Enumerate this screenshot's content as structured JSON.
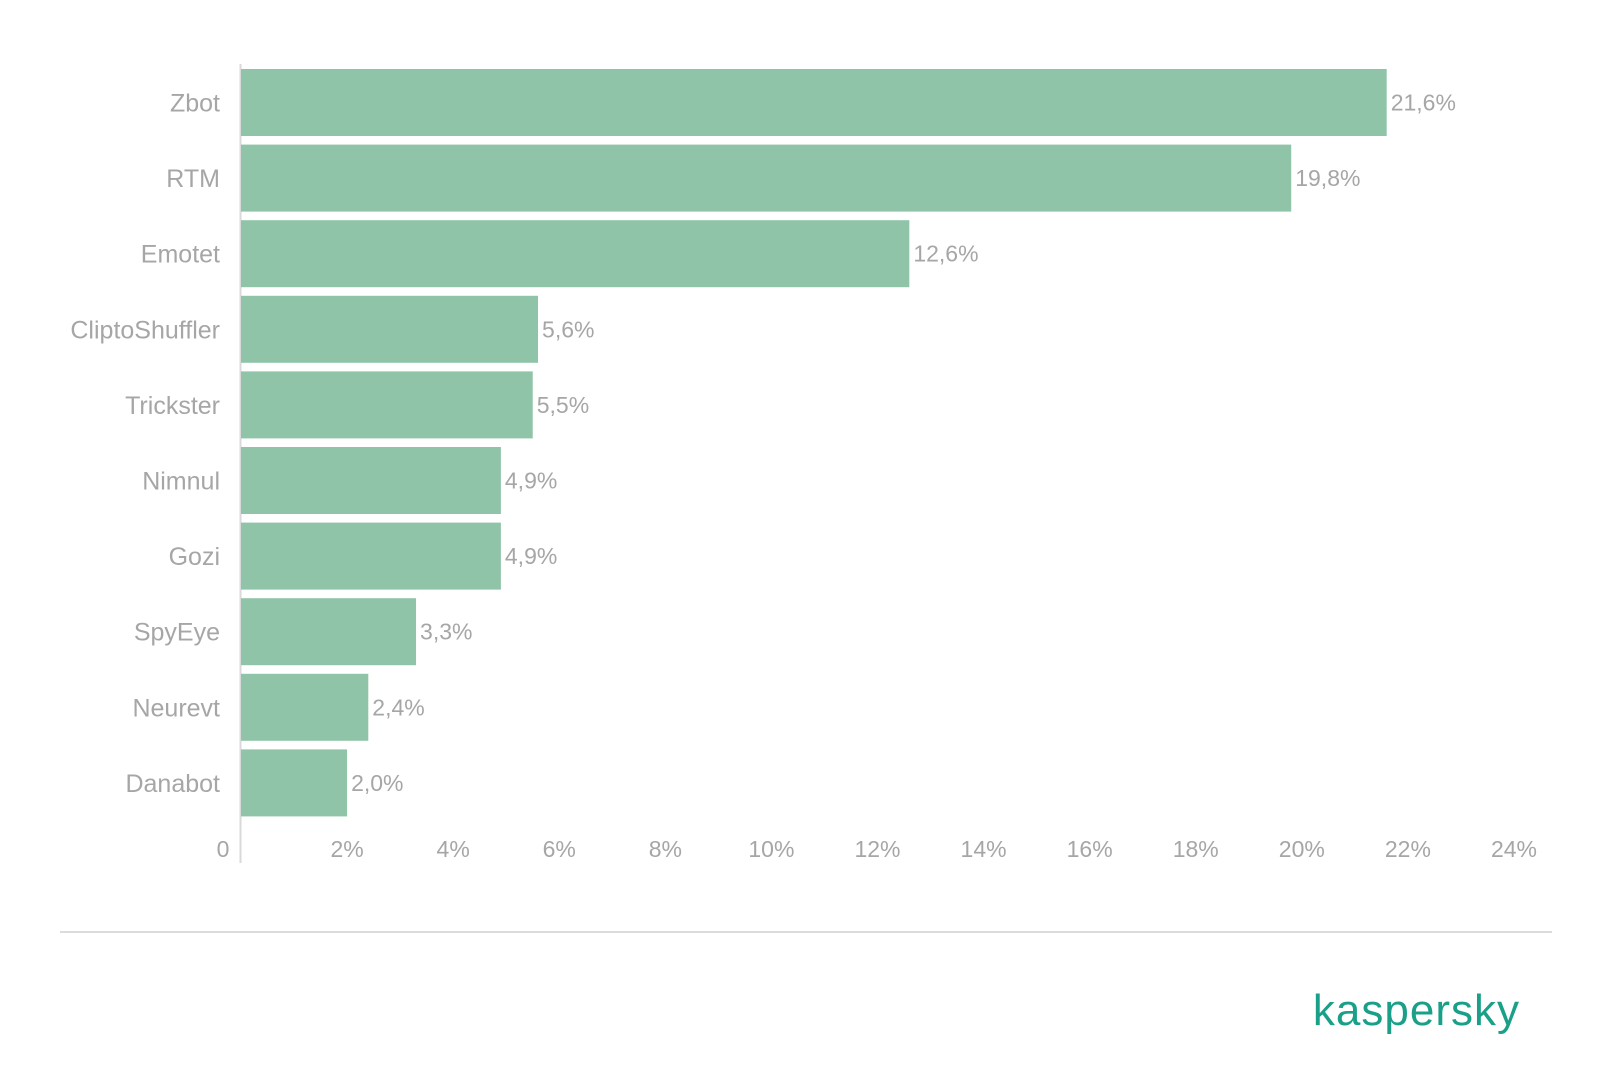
{
  "chart_data": {
    "type": "bar",
    "orientation": "horizontal",
    "categories": [
      "Zbot",
      "RTM",
      "Emotet",
      "CliptoShuffler",
      "Trickster",
      "Nimnul",
      "Gozi",
      "SpyEye",
      "Neurevt",
      "Danabot"
    ],
    "values": [
      21.6,
      19.8,
      12.6,
      5.6,
      5.5,
      4.9,
      4.9,
      3.3,
      2.4,
      2.0
    ],
    "value_labels": [
      "21,6%",
      "19,8%",
      "12,6%",
      "5,6%",
      "5,5%",
      "4,9%",
      "4,9%",
      "3,3%",
      "2,4%",
      "2,0%"
    ],
    "x_ticks": [
      0,
      2,
      4,
      6,
      8,
      10,
      12,
      14,
      16,
      18,
      20,
      22,
      24
    ],
    "x_tick_labels": [
      "0",
      "2%",
      "4%",
      "6%",
      "8%",
      "10%",
      "12%",
      "14%",
      "16%",
      "18%",
      "20%",
      "22%",
      "24%"
    ],
    "xlim": [
      0,
      24
    ],
    "grid": false,
    "legend": "none",
    "title": "",
    "xlabel": "",
    "ylabel": ""
  },
  "colors": {
    "bar": "#90c4a8",
    "text": "#a6a6a6",
    "axis": "#d9d9d9",
    "brand": "#1aa089"
  },
  "branding": {
    "logo_text": "kaspersky"
  }
}
